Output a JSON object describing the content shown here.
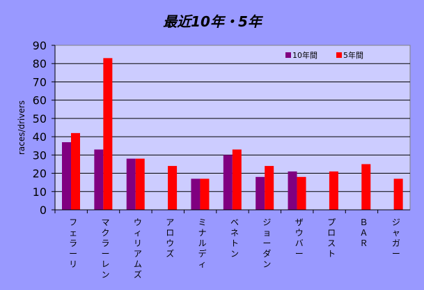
{
  "chart_data": {
    "type": "bar",
    "title": "最近10年・5年",
    "ylabel": "races/drivers",
    "xlabel": "",
    "ylim": [
      0,
      90
    ],
    "yticks": [
      0,
      10,
      20,
      30,
      40,
      50,
      60,
      70,
      80,
      90
    ],
    "grid": true,
    "legend_position": "top-right",
    "categories": [
      "フェラーリ",
      "マクラーレン",
      "ウィリアムズ",
      "アロウズ",
      "ミナルディ",
      "ベネトン",
      "ジョーダン",
      "ザウバー",
      "プロスト",
      "ＢＡＲ",
      "ジャガー"
    ],
    "series": [
      {
        "name": "10年間",
        "color": "#800080",
        "values": [
          37,
          33,
          28,
          null,
          17,
          30,
          18,
          21,
          null,
          null,
          null
        ]
      },
      {
        "name": "5年間",
        "color": "#ff0000",
        "values": [
          42,
          83,
          28,
          24,
          17,
          33,
          24,
          18,
          21,
          25,
          17
        ]
      }
    ]
  }
}
